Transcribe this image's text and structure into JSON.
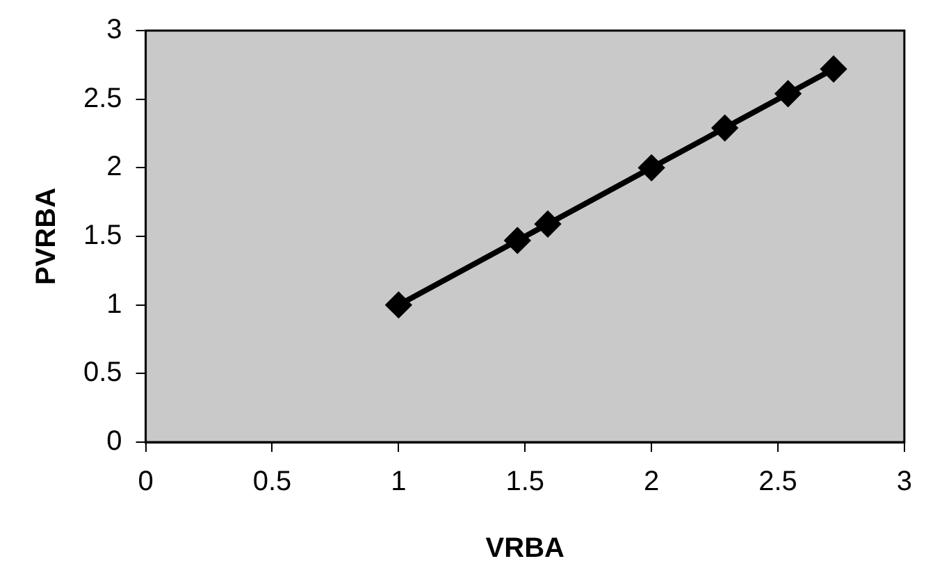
{
  "chart_data": {
    "type": "line",
    "xlabel": "VRBA",
    "ylabel": "PVRBA",
    "series": [
      {
        "color": "#000000",
        "x": [
          1,
          1.47,
          1.59,
          2,
          2.29,
          2.54,
          2.72
        ],
        "values": [
          1,
          1.47,
          1.59,
          2,
          2.29,
          2.54,
          2.72
        ]
      }
    ],
    "xlim": [
      0,
      3
    ],
    "xticks": [
      0,
      0.5,
      1,
      1.5,
      2,
      2.5,
      3
    ],
    "ylim": [
      0,
      3
    ],
    "yticks": [
      0,
      0.5,
      1,
      1.5,
      2,
      2.5,
      3
    ],
    "grid": false,
    "legend": false,
    "marker": "diamond",
    "line_style": "solid"
  }
}
